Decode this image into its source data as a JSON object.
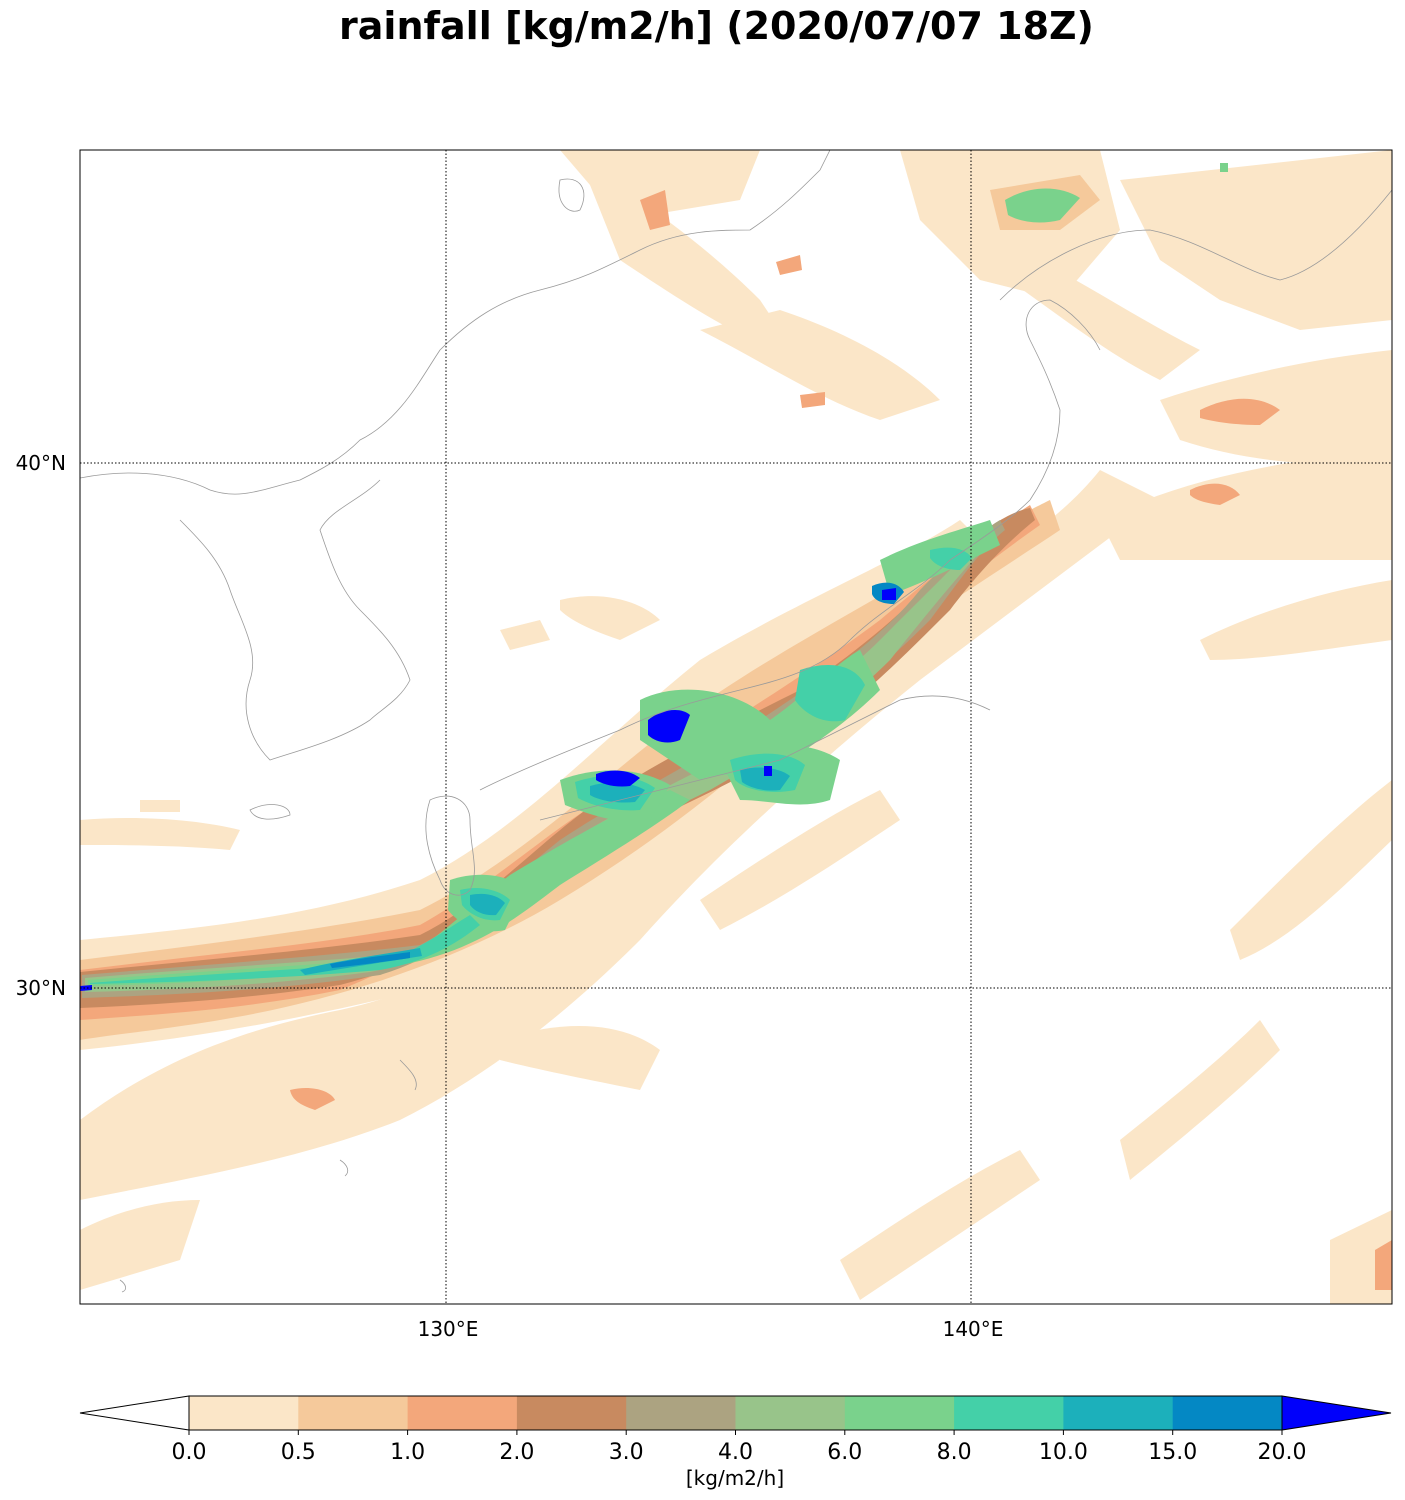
{
  "title": "rainfall [kg/m2/h] (2020/07/07 18Z)",
  "map": {
    "lon_labels": [
      "130°E",
      "140°E"
    ],
    "lat_labels": [
      "40°N",
      "30°N"
    ],
    "gridline_style": "dotted",
    "coastline_color": "#9a9a9a"
  },
  "colorbar": {
    "unit_label": "[kg/m2/h]",
    "extend": "both",
    "ticks": [
      "0.0",
      "0.5",
      "1.0",
      "2.0",
      "3.0",
      "4.0",
      "6.0",
      "8.0",
      "10.0",
      "15.0",
      "20.0"
    ],
    "colors": [
      "#fbe6c8",
      "#f5c99b",
      "#f3a77b",
      "#c88a60",
      "#aca381",
      "#98c48a",
      "#7ad28c",
      "#44d0a8",
      "#1cb0bb",
      "#0488c4",
      "#0000fb"
    ],
    "under_color": "#ffffff"
  }
}
